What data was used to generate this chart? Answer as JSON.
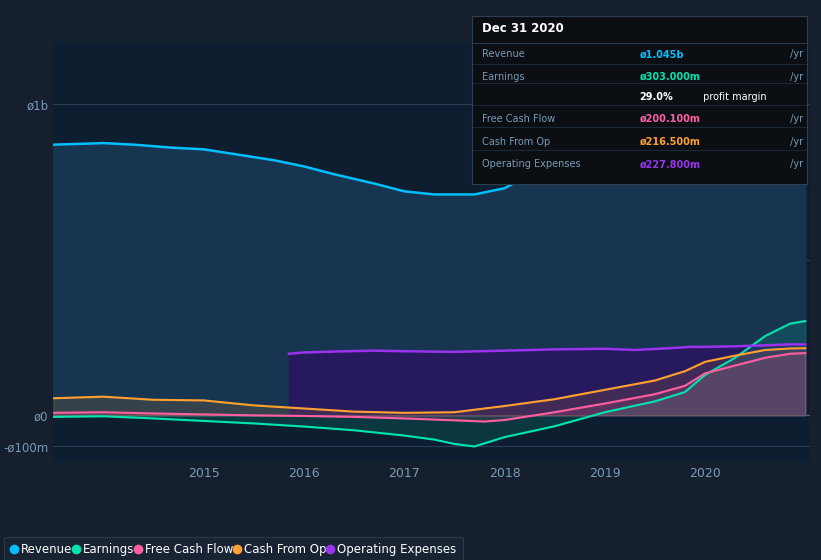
{
  "background_color": "#151f2e",
  "plot_bg": "#0d1e30",
  "rev_color": "#00bfff",
  "earn_color": "#00e5b0",
  "fcf_color": "#ff5fa0",
  "cfo_color": "#ffa030",
  "opex_color": "#9933ee",
  "rev_fill": "#173550",
  "opex_fill": "#2a1560",
  "revenue_x": [
    2013.5,
    2014.0,
    2014.3,
    2014.7,
    2015.0,
    2015.3,
    2015.7,
    2016.0,
    2016.3,
    2016.7,
    2017.0,
    2017.3,
    2017.7,
    2018.0,
    2018.3,
    2018.7,
    2019.0,
    2019.15,
    2019.3,
    2019.5,
    2019.7,
    2019.85,
    2020.0,
    2020.15,
    2020.3,
    2020.5,
    2020.7,
    2020.9,
    2021.0
  ],
  "revenue_y": [
    870,
    875,
    870,
    860,
    855,
    840,
    820,
    800,
    775,
    745,
    720,
    710,
    710,
    730,
    780,
    860,
    1000,
    1080,
    1100,
    1090,
    1060,
    1025,
    975,
    970,
    990,
    1010,
    1035,
    1042,
    1045
  ],
  "earnings_x": [
    2013.5,
    2014.0,
    2014.5,
    2015.0,
    2015.5,
    2016.0,
    2016.5,
    2017.0,
    2017.3,
    2017.5,
    2017.7,
    2018.0,
    2018.5,
    2019.0,
    2019.5,
    2019.8,
    2020.0,
    2020.3,
    2020.6,
    2020.85,
    2021.0
  ],
  "earnings_y": [
    -5,
    -3,
    -10,
    -18,
    -26,
    -36,
    -48,
    -65,
    -78,
    -92,
    -100,
    -70,
    -35,
    10,
    45,
    75,
    130,
    185,
    255,
    295,
    303
  ],
  "fcf_x": [
    2013.5,
    2014.0,
    2014.5,
    2015.0,
    2015.5,
    2016.0,
    2016.5,
    2017.0,
    2017.5,
    2017.8,
    2018.0,
    2018.5,
    2019.0,
    2019.5,
    2019.8,
    2020.0,
    2020.3,
    2020.6,
    2020.85,
    2021.0
  ],
  "fcf_y": [
    8,
    10,
    6,
    3,
    0,
    -2,
    -5,
    -10,
    -16,
    -20,
    -15,
    10,
    38,
    68,
    95,
    135,
    160,
    185,
    198,
    200
  ],
  "cfo_x": [
    2013.5,
    2014.0,
    2014.5,
    2015.0,
    2015.5,
    2016.0,
    2016.5,
    2017.0,
    2017.5,
    2018.0,
    2018.5,
    2019.0,
    2019.5,
    2019.8,
    2020.0,
    2020.3,
    2020.6,
    2020.85,
    2021.0
  ],
  "cfo_y": [
    55,
    60,
    50,
    48,
    32,
    22,
    12,
    8,
    10,
    30,
    52,
    82,
    112,
    142,
    172,
    192,
    210,
    215,
    216
  ],
  "opex_x": [
    2015.85,
    2016.0,
    2016.3,
    2016.7,
    2017.0,
    2017.5,
    2018.0,
    2018.5,
    2019.0,
    2019.3,
    2019.6,
    2019.85,
    2020.0,
    2020.3,
    2020.6,
    2020.85,
    2021.0
  ],
  "opex_y": [
    198,
    202,
    205,
    208,
    206,
    204,
    208,
    212,
    214,
    210,
    215,
    220,
    220,
    222,
    225,
    228,
    227.8
  ],
  "legend_labels": [
    "Revenue",
    "Earnings",
    "Free Cash Flow",
    "Cash From Op",
    "Operating Expenses"
  ],
  "legend_colors": [
    "#00bfff",
    "#00e5b0",
    "#ff5fa0",
    "#ffa030",
    "#9933ee"
  ],
  "info_title": "Dec 31 2020",
  "info_rows": [
    {
      "label": "Revenue",
      "value": "ø1.045b /yr",
      "vcolor": "#00bfff"
    },
    {
      "label": "Earnings",
      "value": "ø303.000m /yr",
      "vcolor": "#00e5b0"
    },
    {
      "label": "",
      "value": "29.0% profit margin",
      "vcolor": "#ffffff"
    },
    {
      "label": "Free Cash Flow",
      "value": "ø200.100m /yr",
      "vcolor": "#ff5fa0"
    },
    {
      "label": "Cash From Op",
      "value": "ø216.500m /yr",
      "vcolor": "#ffa030"
    },
    {
      "label": "Operating Expenses",
      "value": "ø227.800m /yr",
      "vcolor": "#9933ee"
    }
  ]
}
